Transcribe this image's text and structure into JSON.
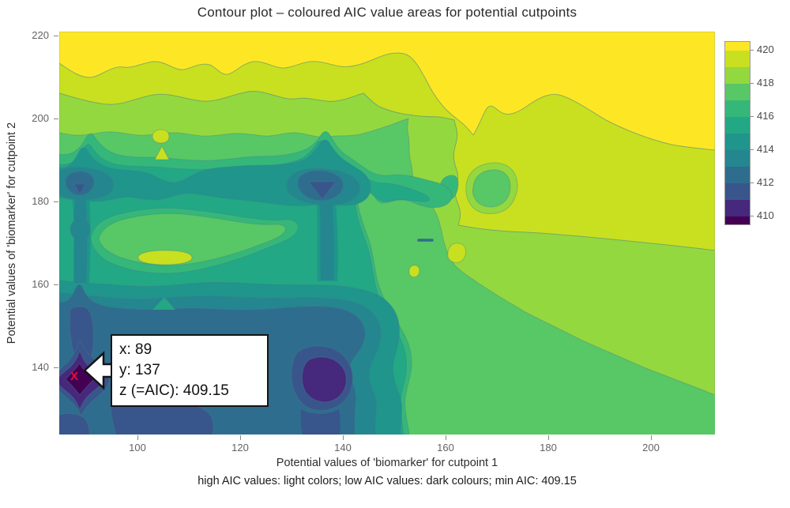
{
  "title": "Contour plot – coloured AIC value areas for potential cutpoints",
  "axes": {
    "x": {
      "label": "Potential values of 'biomarker' for cutpoint 1",
      "ticks": [
        100,
        120,
        140,
        160,
        180,
        200
      ]
    },
    "y": {
      "label": "Potential values of 'biomarker' for cutpoint 2",
      "ticks": [
        220,
        200,
        180,
        160,
        140
      ]
    }
  },
  "footnote": "high AIC values: light colors; low AIC values: dark colours; min AIC: 409.15",
  "annotation": {
    "line1": "x: 89",
    "line2": "y: 137",
    "line3": "z (=AIC): 409.15"
  },
  "marker": {
    "symbol": "X",
    "color": "#e8112d"
  },
  "colorbar": {
    "ticks": [
      420,
      418,
      416,
      414,
      412,
      410
    ]
  },
  "chart_data": {
    "type": "filled_contour",
    "title": "Contour plot – coloured AIC value areas for potential cutpoints",
    "xlabel": "Potential values of 'biomarker' for cutpoint 1",
    "ylabel": "Potential values of 'biomarker' for cutpoint 2",
    "x_range": [
      85,
      210
    ],
    "y_range": [
      124,
      221
    ],
    "z_name": "AIC",
    "z_min": 409.15,
    "z_max": 420.5,
    "levels": [
      {
        "from": 409.15,
        "to": 410,
        "color": "#440154"
      },
      {
        "from": 410,
        "to": 411,
        "color": "#46287c"
      },
      {
        "from": 411,
        "to": 412,
        "color": "#38568b"
      },
      {
        "from": 412,
        "to": 413,
        "color": "#2e6d8e"
      },
      {
        "from": 413,
        "to": 414,
        "color": "#24868e"
      },
      {
        "from": 414,
        "to": 415,
        "color": "#1f958b"
      },
      {
        "from": 415,
        "to": 416,
        "color": "#22a884"
      },
      {
        "from": 416,
        "to": 417,
        "color": "#35b779"
      },
      {
        "from": 417,
        "to": 418,
        "color": "#58c765"
      },
      {
        "from": 418,
        "to": 419,
        "color": "#94d840"
      },
      {
        "from": 419,
        "to": 420,
        "color": "#c8e020"
      },
      {
        "from": 420,
        "to": 420.5,
        "color": "#fde725"
      }
    ],
    "colorbar_ticks": [
      410,
      412,
      414,
      416,
      418,
      420
    ],
    "min_point": {
      "x": 89,
      "y": 137,
      "z": 409.15,
      "marked": "red X with callout"
    },
    "local_minima": [
      {
        "x": 89,
        "y": 137,
        "z": 409.15,
        "note": "global minimum, dark purple basin"
      },
      {
        "x": 137,
        "y": 137,
        "z": 410.5,
        "note": "secondary basin, indigo core"
      },
      {
        "x": 89,
        "y": 183,
        "z": 412,
        "note": "blue spot"
      },
      {
        "x": 137,
        "y": 183,
        "z": 411.5,
        "note": "blue spot"
      }
    ],
    "local_highs": [
      {
        "x": 104,
        "y": 167,
        "z": 419.5,
        "note": "small lime lens inside green area"
      },
      {
        "x": 104,
        "y": 192,
        "z": 419.5,
        "note": "small lime triangle island"
      },
      {
        "x": 162,
        "y": 167,
        "z": 419.5,
        "note": "small lime blob"
      },
      {
        "x": 154,
        "y": 164,
        "z": 419.5,
        "note": "small lime blob"
      }
    ],
    "gradient_description": "AIC is highest (yellow, >420) along the top edge and upper-right region; values decrease toward the lower left where concentric teal/blue/purple rings surround the global minimum at (89,137); horizontal trough rows near y=137, y=156 and y=183 and vertical trough columns near x=89 and x=137 form a chain of dark basins.",
    "legend_position": "right colorbar",
    "grid": false
  }
}
